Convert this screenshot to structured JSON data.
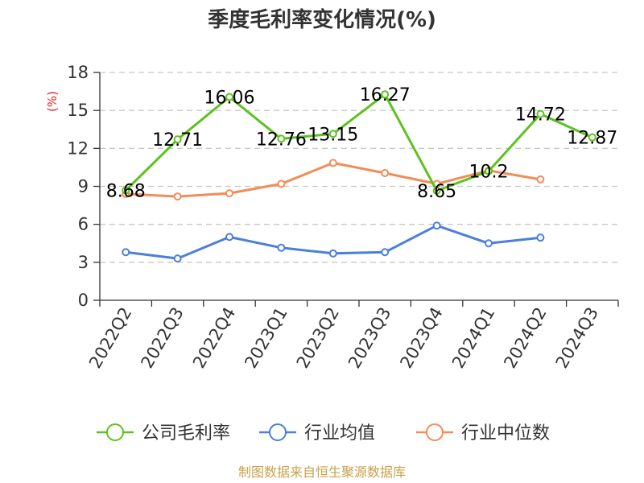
{
  "chart_data": {
    "type": "line",
    "title": "季度毛利率变化情况(%)",
    "ylabel": "(%)",
    "xlabel": "",
    "ylim": [
      0,
      18
    ],
    "yticks": [
      0,
      3,
      6,
      9,
      12,
      15,
      18
    ],
    "grid": true,
    "legend_position": "bottom",
    "categories": [
      "2022Q2",
      "2022Q3",
      "2022Q4",
      "2023Q1",
      "2023Q2",
      "2023Q3",
      "2023Q4",
      "2024Q1",
      "2024Q2",
      "2024Q3"
    ],
    "series": [
      {
        "name": "公司毛利率",
        "color": "#5dc21e",
        "values": [
          8.68,
          12.71,
          16.06,
          12.76,
          13.15,
          16.27,
          8.65,
          10.2,
          14.72,
          12.87
        ],
        "labels": [
          "8.68",
          "12.71",
          "16.06",
          "12.76",
          "13.15",
          "16.27",
          "8.65",
          "10.2",
          "14.72",
          "12.87"
        ]
      },
      {
        "name": "行业均值",
        "color": "#4a7fdc",
        "values": [
          3.8,
          3.3,
          5.0,
          4.15,
          3.7,
          3.8,
          5.9,
          4.5,
          4.95,
          null
        ]
      },
      {
        "name": "行业中位数",
        "color": "#f28c58",
        "values": [
          8.4,
          8.2,
          8.45,
          9.2,
          10.85,
          10.05,
          9.2,
          10.25,
          9.55,
          null
        ]
      }
    ]
  },
  "source_note": "制图数据来自恒生聚源数据库",
  "colors": {
    "title": "#333333",
    "ylabel": "#e02020",
    "source": "#c8a24a",
    "grid": "#c8c8c8",
    "axis": "#333333"
  }
}
